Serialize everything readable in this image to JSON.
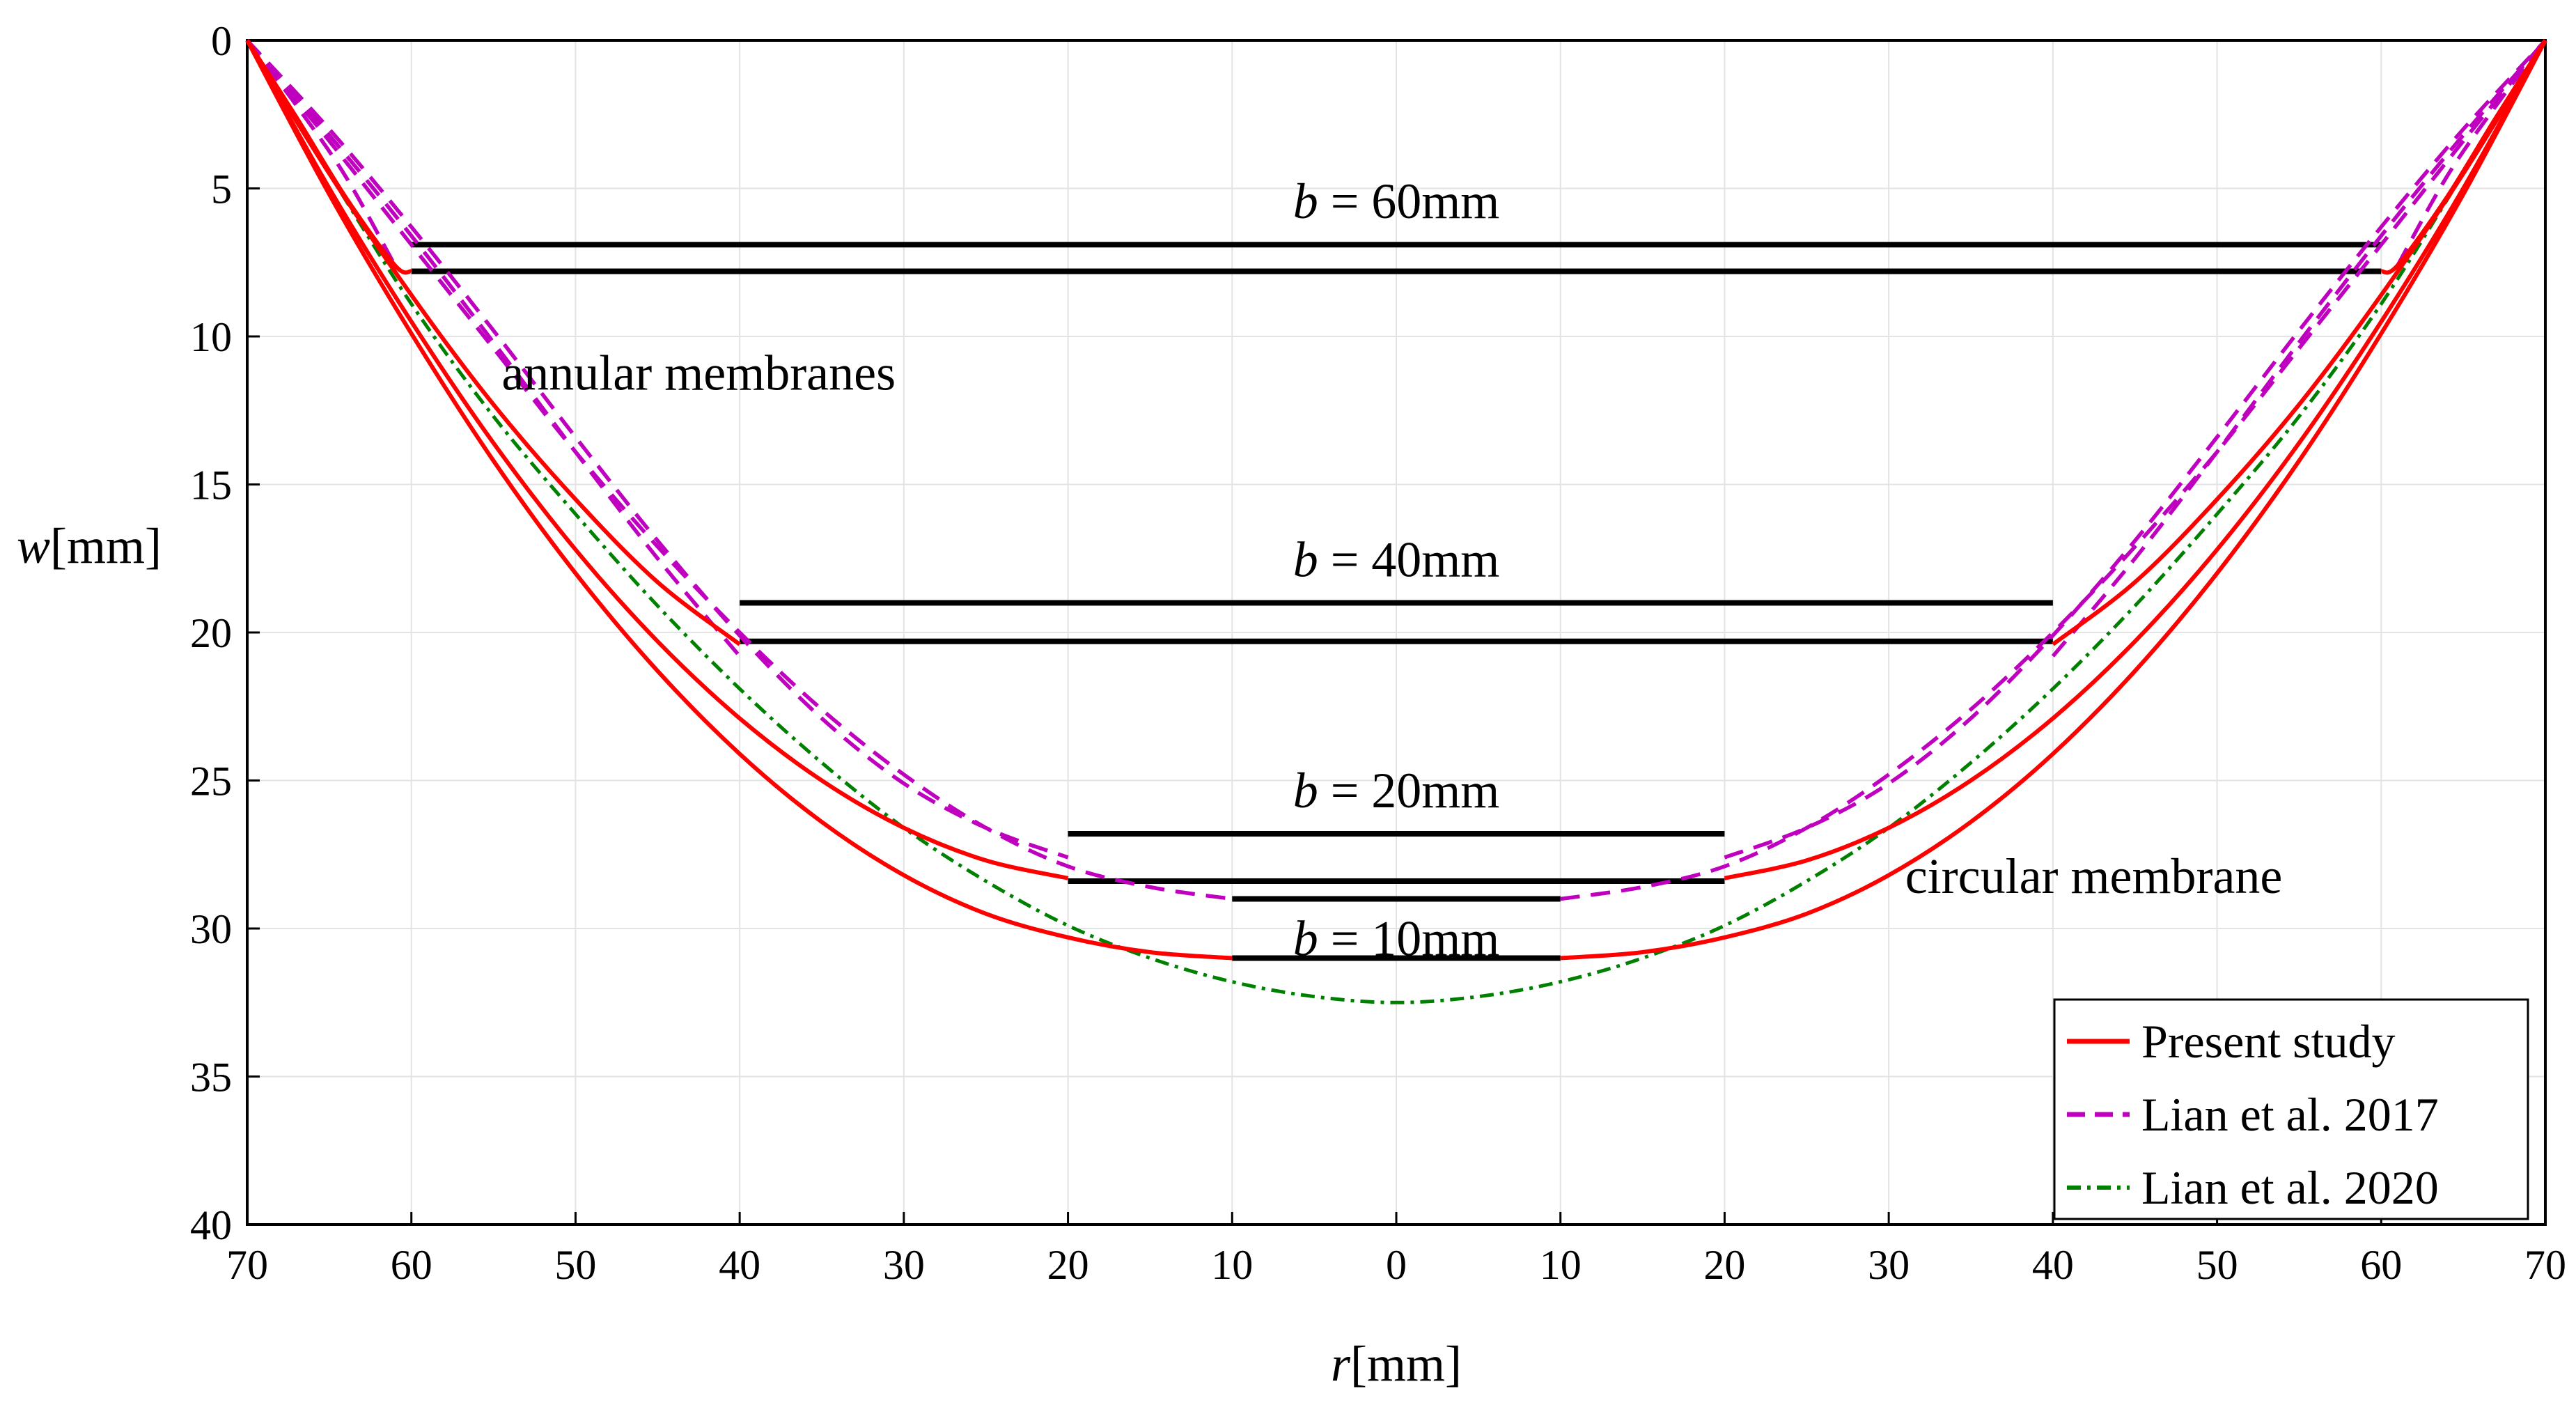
{
  "chart_data": {
    "type": "line",
    "title": "",
    "xlabel": {
      "var": "r",
      "unit": "[mm]"
    },
    "ylabel": {
      "var": "w",
      "unit": "[mm]"
    },
    "x_range": [
      -70,
      70
    ],
    "x_ticks": [
      -70,
      -60,
      -50,
      -40,
      -30,
      -20,
      -10,
      0,
      10,
      20,
      30,
      40,
      50,
      60,
      70
    ],
    "x_tick_labels": [
      "70",
      "60",
      "50",
      "40",
      "30",
      "20",
      "10",
      "0",
      "10",
      "20",
      "30",
      "40",
      "50",
      "60",
      "70"
    ],
    "y_range": [
      0,
      40
    ],
    "y_reversed": true,
    "y_ticks": [
      0,
      5,
      10,
      15,
      20,
      25,
      30,
      35,
      40
    ],
    "y_tick_labels": [
      "0",
      "5",
      "10",
      "15",
      "20",
      "25",
      "30",
      "35",
      "40"
    ],
    "grid": true,
    "legend": {
      "position": "bottom-right",
      "entries": [
        {
          "label": "Present study",
          "color": "#ff0000",
          "style": "solid"
        },
        {
          "label": "Lian et al. 2017",
          "color": "#bf00bf",
          "style": "dashed"
        },
        {
          "label": "Lian et al. 2020",
          "color": "#008000",
          "style": "dashdot"
        }
      ]
    },
    "series": [
      {
        "name": "Present study",
        "case": "b = 60mm",
        "color": "#ff0000",
        "style": "solid",
        "x": [
          -70,
          -67,
          -64,
          -61,
          -60
        ],
        "y": [
          0,
          2.6,
          5.3,
          7.6,
          7.8
        ]
      },
      {
        "name": "Present study",
        "case": "b = 60mm",
        "color": "#ff0000",
        "style": "solid",
        "x": [
          60,
          61,
          64,
          67,
          70
        ],
        "y": [
          7.8,
          7.6,
          5.3,
          2.6,
          0
        ]
      },
      {
        "name": "Present study",
        "case": "b = 40mm",
        "color": "#ff0000",
        "style": "solid",
        "x": [
          -70,
          -65,
          -60,
          -55,
          -50,
          -45,
          -40
        ],
        "y": [
          0,
          4.5,
          8.6,
          12.3,
          15.5,
          18.3,
          20.4
        ]
      },
      {
        "name": "Present study",
        "case": "b = 40mm",
        "color": "#ff0000",
        "style": "solid",
        "x": [
          40,
          45,
          50,
          55,
          60,
          65,
          70
        ],
        "y": [
          20.4,
          18.3,
          15.5,
          12.3,
          8.6,
          4.5,
          0
        ]
      },
      {
        "name": "Present study",
        "case": "b = 20mm",
        "color": "#ff0000",
        "style": "solid",
        "x": [
          -70,
          -65,
          -60,
          -55,
          -50,
          -45,
          -40,
          -35,
          -30,
          -25,
          -20
        ],
        "y": [
          0,
          5.0,
          9.5,
          13.6,
          17.2,
          20.3,
          22.9,
          25.0,
          26.6,
          27.7,
          28.3
        ]
      },
      {
        "name": "Present study",
        "case": "b = 20mm",
        "color": "#ff0000",
        "style": "solid",
        "x": [
          20,
          25,
          30,
          35,
          40,
          45,
          50,
          55,
          60,
          65,
          70
        ],
        "y": [
          28.3,
          27.7,
          26.6,
          25.0,
          22.9,
          20.3,
          17.2,
          13.6,
          9.5,
          5.0,
          0
        ]
      },
      {
        "name": "Present study",
        "case": "b = 10mm",
        "color": "#ff0000",
        "style": "solid",
        "x": [
          -70,
          -65,
          -60,
          -55,
          -50,
          -45,
          -40,
          -35,
          -30,
          -25,
          -20,
          -15,
          -10
        ],
        "y": [
          0,
          5.2,
          9.9,
          14.2,
          18.0,
          21.3,
          24.1,
          26.4,
          28.2,
          29.5,
          30.3,
          30.8,
          31.0
        ]
      },
      {
        "name": "Present study",
        "case": "b = 10mm",
        "color": "#ff0000",
        "style": "solid",
        "x": [
          10,
          15,
          20,
          25,
          30,
          35,
          40,
          45,
          50,
          55,
          60,
          65,
          70
        ],
        "y": [
          31.0,
          30.8,
          30.3,
          29.5,
          28.2,
          26.4,
          24.1,
          21.3,
          18.0,
          14.2,
          9.9,
          5.2,
          0
        ]
      },
      {
        "name": "Lian et al. 2017",
        "case": "b = 60mm",
        "color": "#bf00bf",
        "style": "dashed",
        "x": [
          -70,
          -67,
          -64,
          -61
        ],
        "y": [
          0,
          2.2,
          4.6,
          7.6
        ]
      },
      {
        "name": "Lian et al. 2017",
        "case": "b = 60mm",
        "color": "#bf00bf",
        "style": "dashed",
        "x": [
          61,
          64,
          67,
          70
        ],
        "y": [
          7.6,
          4.6,
          2.2,
          0
        ]
      },
      {
        "name": "Lian et al. 2017",
        "case": "b = 40mm",
        "color": "#bf00bf",
        "style": "dashed",
        "x": [
          -70,
          -65,
          -60,
          -55,
          -50,
          -45,
          -40
        ],
        "y": [
          0,
          3.2,
          6.6,
          10.2,
          13.9,
          17.5,
          20.8
        ]
      },
      {
        "name": "Lian et al. 2017",
        "case": "b = 40mm",
        "color": "#bf00bf",
        "style": "dashed",
        "x": [
          40,
          45,
          50,
          55,
          60,
          65,
          70
        ],
        "y": [
          20.8,
          17.5,
          13.9,
          10.2,
          6.6,
          3.2,
          0
        ]
      },
      {
        "name": "Lian et al. 2017",
        "case": "b = 20mm",
        "color": "#bf00bf",
        "style": "dashed",
        "x": [
          -70,
          -65,
          -60,
          -55,
          -50,
          -45,
          -40,
          -35,
          -30,
          -25,
          -20
        ],
        "y": [
          0,
          3.0,
          6.3,
          9.8,
          13.4,
          16.9,
          20.1,
          22.9,
          25.1,
          26.6,
          27.6
        ]
      },
      {
        "name": "Lian et al. 2017",
        "case": "b = 20mm",
        "color": "#bf00bf",
        "style": "dashed",
        "x": [
          20,
          25,
          30,
          35,
          40,
          45,
          50,
          55,
          60,
          65,
          70
        ],
        "y": [
          27.6,
          26.6,
          25.1,
          22.9,
          20.1,
          16.9,
          13.4,
          9.8,
          6.3,
          3.0,
          0
        ]
      },
      {
        "name": "Lian et al. 2017",
        "case": "b = 10mm",
        "color": "#bf00bf",
        "style": "dashed",
        "x": [
          -70,
          -65,
          -60,
          -55,
          -50,
          -45,
          -40,
          -35,
          -30,
          -25,
          -20,
          -15,
          -10
        ],
        "y": [
          0,
          3.4,
          6.9,
          10.4,
          13.9,
          17.1,
          20.0,
          22.6,
          24.8,
          26.6,
          27.9,
          28.6,
          29.0
        ]
      },
      {
        "name": "Lian et al. 2017",
        "case": "b = 10mm",
        "color": "#bf00bf",
        "style": "dashed",
        "x": [
          10,
          15,
          20,
          25,
          30,
          35,
          40,
          45,
          50,
          55,
          60,
          65,
          70
        ],
        "y": [
          29.0,
          28.6,
          27.9,
          26.6,
          24.8,
          22.6,
          20.0,
          17.1,
          13.9,
          10.4,
          6.9,
          3.4,
          0
        ]
      },
      {
        "name": "Lian et al. 2020",
        "case": "circular membrane",
        "color": "#008000",
        "style": "dashdot",
        "x": [
          -70,
          -65,
          -60,
          -55,
          -50,
          -45,
          -40,
          -35,
          -30,
          -25,
          -20,
          -15,
          -10,
          -5,
          0,
          5,
          10,
          15,
          20,
          25,
          30,
          35,
          40,
          45,
          50,
          55,
          60,
          65,
          70
        ],
        "y": [
          0,
          4.5,
          8.9,
          12.7,
          16.0,
          19.1,
          21.9,
          24.4,
          26.6,
          28.4,
          29.9,
          31.0,
          31.8,
          32.3,
          32.5,
          32.3,
          31.8,
          31.0,
          29.9,
          28.4,
          26.6,
          24.4,
          21.9,
          19.1,
          16.0,
          12.7,
          8.9,
          4.5,
          0
        ]
      }
    ],
    "inner_edges": [
      {
        "x1": -60,
        "x2": 60,
        "y": 6.9
      },
      {
        "x1": -60,
        "x2": 60,
        "y": 7.8
      },
      {
        "x1": -40,
        "x2": 40,
        "y": 19.0
      },
      {
        "x1": -40,
        "x2": 40,
        "y": 20.3
      },
      {
        "x1": -20,
        "x2": 20,
        "y": 26.8
      },
      {
        "x1": -20,
        "x2": 20,
        "y": 28.4
      },
      {
        "x1": -10,
        "x2": 10,
        "y": 29.0
      },
      {
        "x1": -10,
        "x2": 10,
        "y": 31.0
      }
    ],
    "annotations": [
      {
        "var": "b",
        "rest": " = 60mm",
        "x": 0,
        "y": 6.0
      },
      {
        "var": "b",
        "rest": " = 40mm",
        "x": 0,
        "y": 18.1
      },
      {
        "var": "b",
        "rest": " = 20mm",
        "x": 0,
        "y": 25.9
      },
      {
        "var": "b",
        "rest": " = 10mm",
        "x": 0,
        "y": 30.9
      },
      {
        "var": "",
        "rest": "annular membranes",
        "x": -54.5,
        "y": 11.8
      },
      {
        "var": "",
        "rest": "circular membrane",
        "x": 31,
        "y": 28.8
      }
    ]
  }
}
